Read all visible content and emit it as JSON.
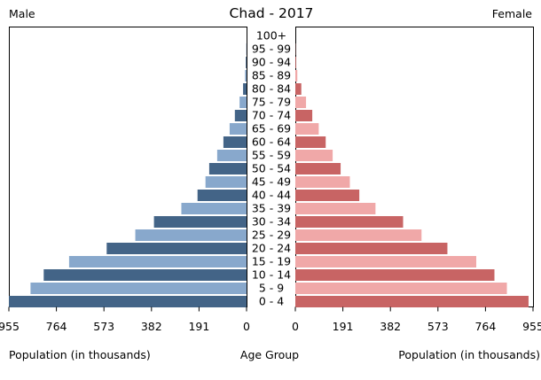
{
  "chart_data": {
    "type": "bar",
    "title": "Chad - 2017",
    "left_label": "Male",
    "right_label": "Female",
    "xlabel_left": "Population (in thousands)",
    "xlabel_center": "Age Group",
    "xlabel_right": "Population (in thousands)",
    "xlim": [
      0,
      955
    ],
    "xticks": [
      "955",
      "764",
      "573",
      "382",
      "191",
      "0"
    ],
    "xticks_right": [
      "0",
      "191",
      "382",
      "573",
      "764",
      "955"
    ],
    "categories": [
      "0 - 4",
      "5 - 9",
      "10 - 14",
      "15 - 19",
      "20 - 24",
      "25 - 29",
      "30 - 34",
      "35 - 39",
      "40 - 44",
      "45 - 49",
      "50 - 54",
      "55 - 59",
      "60 - 64",
      "65 - 69",
      "70 - 74",
      "75 - 79",
      "80 - 84",
      "85 - 89",
      "90 - 94",
      "95 - 99",
      "100+"
    ],
    "series": [
      {
        "name": "Male",
        "values": [
          955,
          868,
          815,
          713,
          562,
          447,
          372,
          262,
          197,
          165,
          150,
          118,
          93,
          68,
          47,
          28,
          14,
          6,
          3,
          1,
          0
        ]
      },
      {
        "name": "Female",
        "values": [
          937,
          850,
          800,
          727,
          611,
          507,
          433,
          322,
          257,
          219,
          182,
          150,
          122,
          94,
          68,
          43,
          24,
          8,
          3,
          1,
          0
        ]
      }
    ],
    "colors": {
      "male_dark": "#436487",
      "male_light": "#88a8cc",
      "female_dark": "#c86464",
      "female_light": "#f0a8a8"
    },
    "grid": false,
    "legend": "none"
  }
}
